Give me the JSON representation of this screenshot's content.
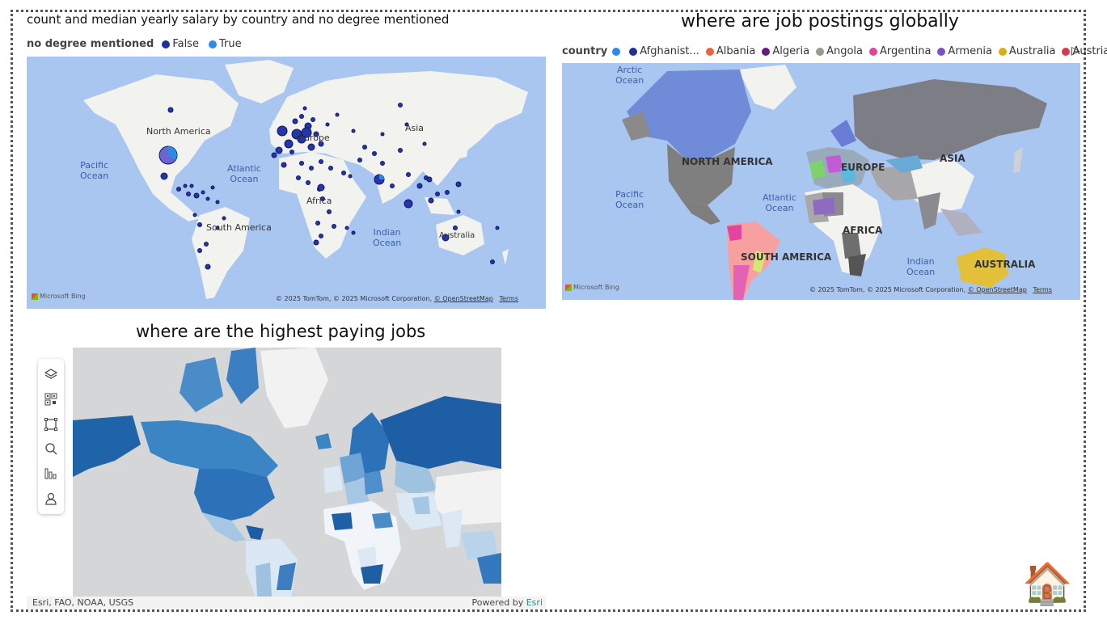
{
  "map1": {
    "title": "count and median yearly salary by country and no degree mentioned",
    "legend_label": "no degree mentioned",
    "legend_items": [
      {
        "label": "False",
        "color": "#1f2f9c"
      },
      {
        "label": "True",
        "color": "#2b8be6"
      }
    ],
    "continents": {
      "na": "North America",
      "eu": "Europe",
      "as": "Asia",
      "af": "Africa",
      "sa": "South America",
      "au": "Australia"
    },
    "oceans": {
      "pacific": "Pacific\nOcean",
      "atlantic": "Atlantic\nOcean",
      "indian": "Indian\nOcean"
    },
    "attribution": "© 2025 TomTom, © 2025 Microsoft Corporation,",
    "osm": "© OpenStreetMap",
    "terms": "Terms",
    "bing": "Microsoft Bing"
  },
  "map2": {
    "title": "where are job postings globally",
    "legend_label": "country",
    "legend_items": [
      {
        "label": "",
        "color": "#2b8be6"
      },
      {
        "label": "Afghanist...",
        "color": "#1f2f9c"
      },
      {
        "label": "Albania",
        "color": "#e8673a"
      },
      {
        "label": "Algeria",
        "color": "#6b1780"
      },
      {
        "label": "Angola",
        "color": "#9a9a8a"
      },
      {
        "label": "Argentina",
        "color": "#e244a0"
      },
      {
        "label": "Armenia",
        "color": "#7e4fc6"
      },
      {
        "label": "Australia",
        "color": "#d8b00e"
      },
      {
        "label": "Austria",
        "color": "#d8394a"
      }
    ],
    "continents": {
      "arctic": "Arctic\nOcean",
      "na": "NORTH AMERICA",
      "eu": "EUROPE",
      "as": "ASIA",
      "af": "AFRICA",
      "sa": "SOUTH AMERICA",
      "au": "AUSTRALIA"
    },
    "oceans": {
      "pacific": "Pacific\nOcean",
      "atlantic": "Atlantic\nOcean",
      "indian": "Indian\nOcean"
    },
    "attribution": "© 2025 TomTom, © 2025 Microsoft Corporation,",
    "osm": "© OpenStreetMap",
    "terms": "Terms",
    "bing": "Microsoft Bing"
  },
  "map3": {
    "title": "where are the highest paying jobs",
    "footer_left": "Esri, FAO, NOAA, USGS",
    "footer_powered": "Powered by ",
    "footer_brand": "Esri",
    "tools": [
      "layers-icon",
      "qr-select-icon",
      "rect-select-icon",
      "search-icon",
      "chart-bars-icon",
      "person-icon"
    ]
  },
  "home": {
    "icon": "🏠"
  }
}
